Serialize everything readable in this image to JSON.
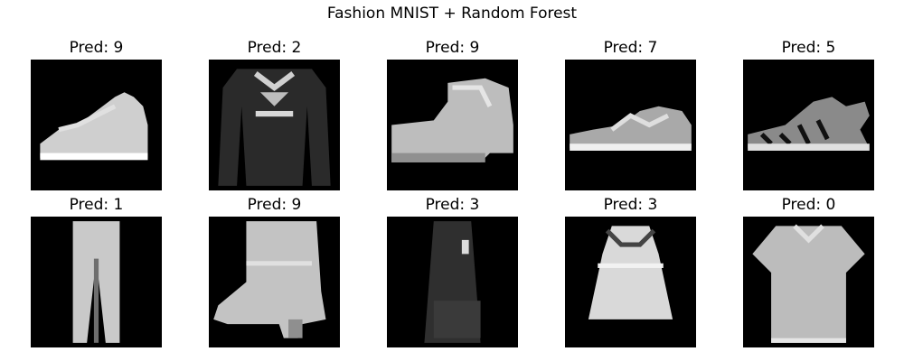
{
  "figure": {
    "title": "Fashion MNIST + Random Forest"
  },
  "panels": [
    {
      "label": "Pred: 9",
      "icon": "sneaker"
    },
    {
      "label": "Pred: 2",
      "icon": "pullover"
    },
    {
      "label": "Pred: 9",
      "icon": "boot"
    },
    {
      "label": "Pred: 7",
      "icon": "sneaker"
    },
    {
      "label": "Pred: 5",
      "icon": "sandal"
    },
    {
      "label": "Pred: 1",
      "icon": "trouser"
    },
    {
      "label": "Pred: 9",
      "icon": "boot"
    },
    {
      "label": "Pred: 3",
      "icon": "dress"
    },
    {
      "label": "Pred: 3",
      "icon": "dress"
    },
    {
      "label": "Pred: 0",
      "icon": "t-shirt"
    }
  ],
  "colors": {
    "background": "#000000",
    "foreground": "#ffffff"
  }
}
